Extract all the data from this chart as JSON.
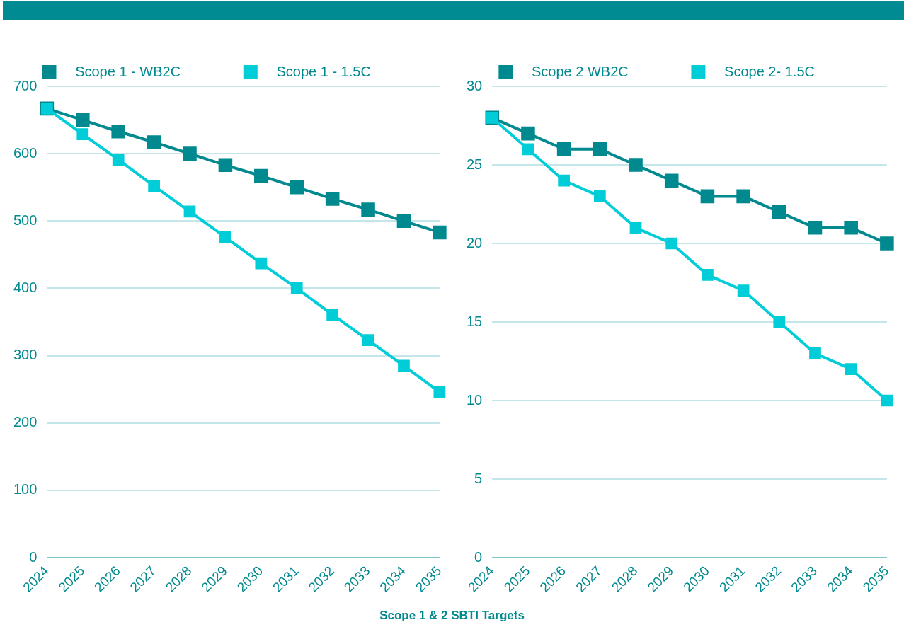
{
  "chart_data": [
    {
      "type": "line",
      "categories": [
        "2024",
        "2025",
        "2026",
        "2027",
        "2028",
        "2029",
        "2030",
        "2031",
        "2032",
        "2033",
        "2034",
        "2035"
      ],
      "ylim": [
        0,
        700
      ],
      "yticks": [
        0,
        100,
        200,
        300,
        400,
        500,
        600,
        700
      ],
      "grid": "y",
      "legend": "top",
      "marker": "square",
      "line_style": "solid",
      "series": [
        {
          "name": "Scope 1 - WB2C",
          "color": "#00898f",
          "values": [
            667,
            650,
            633,
            617,
            600,
            583,
            567,
            550,
            533,
            517,
            500,
            483
          ]
        },
        {
          "name": "Scope 1 - 1.5C",
          "color": "#00cdd8",
          "values": [
            667,
            629,
            591,
            552,
            514,
            476,
            437,
            400,
            361,
            323,
            285,
            246
          ]
        }
      ]
    },
    {
      "type": "line",
      "categories": [
        "2024",
        "2025",
        "2026",
        "2027",
        "2028",
        "2029",
        "2030",
        "2031",
        "2032",
        "2033",
        "2034",
        "2035"
      ],
      "ylim": [
        0,
        30
      ],
      "yticks": [
        0,
        5,
        10,
        15,
        20,
        25,
        30
      ],
      "grid": "y",
      "legend": "top",
      "marker": "square",
      "line_style": "solid",
      "series": [
        {
          "name": "Scope 2 WB2C",
          "color": "#00898f",
          "values": [
            28,
            27,
            26,
            26,
            25,
            24,
            23,
            23,
            22,
            21,
            21,
            20
          ]
        },
        {
          "name": "Scope 2- 1.5C",
          "color": "#00cdd8",
          "values": [
            28,
            26,
            24,
            23,
            21,
            20,
            18,
            17,
            15,
            13,
            12,
            10
          ]
        }
      ]
    },
    {
      "type": "other",
      "title": "Scope 1 & 2 SBTI Targets"
    }
  ]
}
